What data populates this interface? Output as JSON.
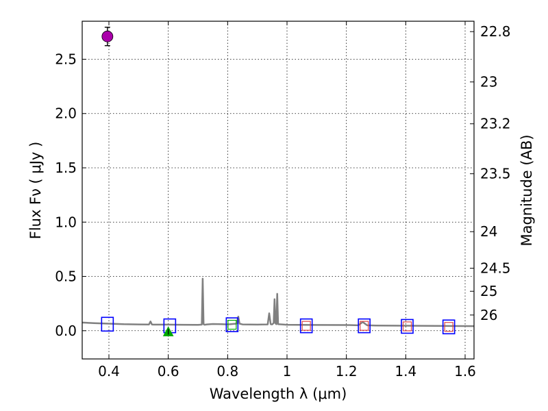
{
  "chart_data": {
    "type": "scatter",
    "title": "",
    "xlabel": "Wavelength  λ (μm)",
    "ylabel": "Flux  Fν  ( μJy )",
    "ylabel_right": "Magnitude (AB)",
    "xlim": [
      0.31,
      1.63
    ],
    "ylim": [
      -0.26,
      2.85
    ],
    "grid": true,
    "x_ticks": [
      {
        "value": 0.4,
        "label": "0.4"
      },
      {
        "value": 0.6,
        "label": "0.6"
      },
      {
        "value": 0.8,
        "label": "0.8"
      },
      {
        "value": 1.0,
        "label": "1"
      },
      {
        "value": 1.2,
        "label": "1.2"
      },
      {
        "value": 1.4,
        "label": "1.4"
      },
      {
        "value": 1.6,
        "label": "1.6"
      }
    ],
    "y_ticks": [
      {
        "value": 0.0,
        "label": "0.0"
      },
      {
        "value": 0.5,
        "label": "0.5"
      },
      {
        "value": 1.0,
        "label": "1.0"
      },
      {
        "value": 1.5,
        "label": "1.5"
      },
      {
        "value": 2.0,
        "label": "2.0"
      },
      {
        "value": 2.5,
        "label": "2.5"
      }
    ],
    "y2_ticks": [
      {
        "mag": 22.8,
        "label": "22.8"
      },
      {
        "mag": 23.0,
        "label": "23"
      },
      {
        "mag": 23.2,
        "label": "23.2"
      },
      {
        "mag": 23.5,
        "label": "23.5"
      },
      {
        "mag": 24.0,
        "label": "24"
      },
      {
        "mag": 24.5,
        "label": "24.5"
      },
      {
        "mag": 25.0,
        "label": "25"
      },
      {
        "mag": 26.0,
        "label": "26"
      }
    ],
    "model_spectrum": {
      "color": "#808080",
      "x": [
        0.31,
        0.35,
        0.4,
        0.45,
        0.5,
        0.535,
        0.54,
        0.545,
        0.55,
        0.6,
        0.65,
        0.7,
        0.713,
        0.716,
        0.719,
        0.722,
        0.73,
        0.75,
        0.78,
        0.8,
        0.83,
        0.836,
        0.84,
        0.85,
        0.9,
        0.935,
        0.94,
        0.945,
        0.95,
        0.955,
        0.958,
        0.961,
        0.964,
        0.967,
        0.97,
        1.0,
        1.1,
        1.2,
        1.24,
        1.255,
        1.27,
        1.3,
        1.4,
        1.5,
        1.63
      ],
      "y": [
        0.075,
        0.07,
        0.065,
        0.06,
        0.058,
        0.057,
        0.085,
        0.057,
        0.056,
        0.056,
        0.055,
        0.054,
        0.056,
        0.48,
        0.06,
        0.055,
        0.058,
        0.062,
        0.06,
        0.058,
        0.065,
        0.13,
        0.065,
        0.058,
        0.056,
        0.058,
        0.16,
        0.06,
        0.058,
        0.07,
        0.29,
        0.07,
        0.06,
        0.34,
        0.06,
        0.055,
        0.053,
        0.052,
        0.05,
        0.08,
        0.05,
        0.048,
        0.046,
        0.045,
        0.042
      ]
    },
    "observed": [
      {
        "name": "",
        "marker": "circle",
        "color": "#aa00aa",
        "x": 0.395,
        "y": 2.71,
        "yerr": 0.085
      }
    ],
    "upper_limits": [
      {
        "marker": "triangle",
        "color": "#00aa00",
        "x": 0.6,
        "y": -0.01
      }
    ],
    "model_photometry": [
      {
        "marker": "square",
        "color": "#0000ff",
        "x": 0.395,
        "y": 0.06
      },
      {
        "marker": "square",
        "color": "#0000ff",
        "x": 0.605,
        "y": 0.045
      },
      {
        "marker": "square",
        "color": "#0000ff",
        "x": 0.815,
        "y": 0.055
      },
      {
        "marker": "square",
        "color": "#0000ff",
        "x": 1.065,
        "y": 0.045
      },
      {
        "marker": "square",
        "color": "#0000ff",
        "x": 1.26,
        "y": 0.045
      },
      {
        "marker": "square",
        "color": "#0000ff",
        "x": 1.405,
        "y": 0.04
      },
      {
        "marker": "square",
        "color": "#0000ff",
        "x": 1.545,
        "y": 0.035
      }
    ],
    "inner_squares": [
      {
        "color": "#00aa00",
        "x": 0.815,
        "y": 0.055
      },
      {
        "color": "#dd4444",
        "x": 1.065,
        "y": 0.045
      },
      {
        "color": "#dd4444",
        "x": 1.26,
        "y": 0.045
      },
      {
        "color": "#dd4444",
        "x": 1.405,
        "y": 0.04
      },
      {
        "color": "#dd4444",
        "x": 1.545,
        "y": 0.035
      }
    ]
  }
}
